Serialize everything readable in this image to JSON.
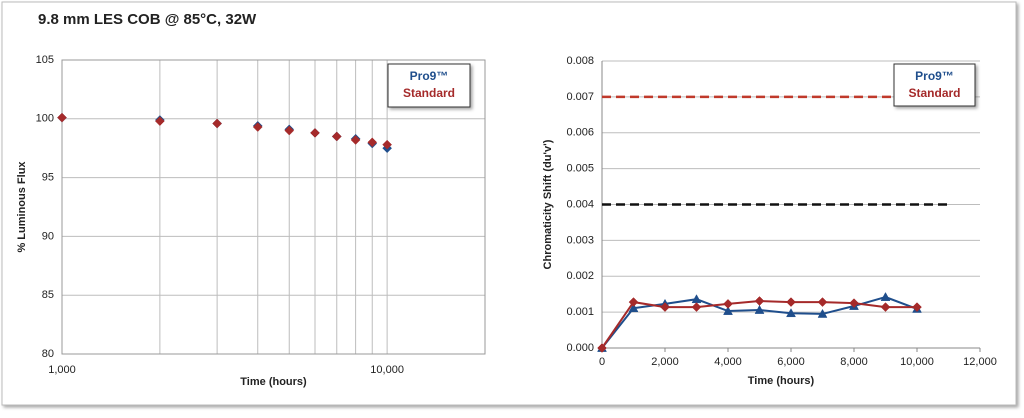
{
  "title": "9.8 mm LES COB @ 85°C, 32W",
  "chart_data": [
    {
      "type": "scatter",
      "xscale": "log",
      "xlabel": "Time (hours)",
      "ylabel": "% Luminous Flux",
      "xlim": [
        1000,
        20000
      ],
      "xticks": [
        {
          "value": 1000,
          "label": "1,000"
        },
        {
          "value": 10000,
          "label": "10,000"
        }
      ],
      "xminorticks": [
        2000,
        3000,
        4000,
        5000,
        6000,
        7000,
        8000,
        9000
      ],
      "ylim": [
        80,
        105
      ],
      "yticks": [
        80,
        85,
        90,
        95,
        100,
        105
      ],
      "xgrid": true,
      "ygrid": true,
      "legend": "upper right",
      "x": [
        1000,
        2000,
        3000,
        4000,
        5000,
        6000,
        7000,
        8000,
        9000,
        10000
      ],
      "series": [
        {
          "name": "Pro9™",
          "color": "#1f4e8c",
          "marker": "diamond",
          "values": [
            100.1,
            99.9,
            99.6,
            99.4,
            99.1,
            98.8,
            98.5,
            98.3,
            97.9,
            97.5
          ]
        },
        {
          "name": "Standard",
          "color": "#a52a2a",
          "marker": "diamond",
          "values": [
            100.1,
            99.8,
            99.6,
            99.3,
            99.0,
            98.8,
            98.5,
            98.2,
            98.0,
            97.8
          ]
        }
      ]
    },
    {
      "type": "line",
      "xlabel": "Time (hours)",
      "ylabel": "Chromaticity Shift (du'v')",
      "xlim": [
        0,
        12000
      ],
      "xticks": [
        0,
        {
          "value": 2000,
          "label": "2,000"
        },
        {
          "value": 4000,
          "label": "4,000"
        },
        {
          "value": 6000,
          "label": "6,000"
        },
        {
          "value": 8000,
          "label": "8,000"
        },
        {
          "value": 10000,
          "label": "10,000"
        },
        {
          "value": 12000,
          "label": "12,000"
        }
      ],
      "ylim": [
        0,
        0.008
      ],
      "yticks": [
        {
          "value": 0,
          "label": "0.000"
        },
        0.001,
        0.002,
        0.003,
        0.004,
        0.005,
        0.006,
        0.007,
        0.008
      ],
      "xgrid": false,
      "ygrid": true,
      "legend": "upper right",
      "hlines": [
        {
          "value": 0.007,
          "color": "#c0392b",
          "xrange": [
            0,
            11000
          ]
        },
        {
          "value": 0.004,
          "color": "#111111",
          "xrange": [
            0,
            11000
          ]
        }
      ],
      "x": [
        0,
        1000,
        2000,
        3000,
        4000,
        5000,
        6000,
        7000,
        8000,
        9000,
        10000
      ],
      "series": [
        {
          "name": "Pro9™",
          "color": "#1f4e8c",
          "marker": "triangle",
          "values": [
            0,
            0.00111,
            0.00123,
            0.00136,
            0.00103,
            0.00106,
            0.00097,
            0.00095,
            0.00117,
            0.00142,
            0.00109
          ]
        },
        {
          "name": "Standard",
          "color": "#a52a2a",
          "marker": "diamond",
          "values": [
            0,
            0.00128,
            0.00114,
            0.00114,
            0.00123,
            0.00131,
            0.00128,
            0.00128,
            0.00125,
            0.00114,
            0.00114
          ]
        }
      ]
    }
  ]
}
